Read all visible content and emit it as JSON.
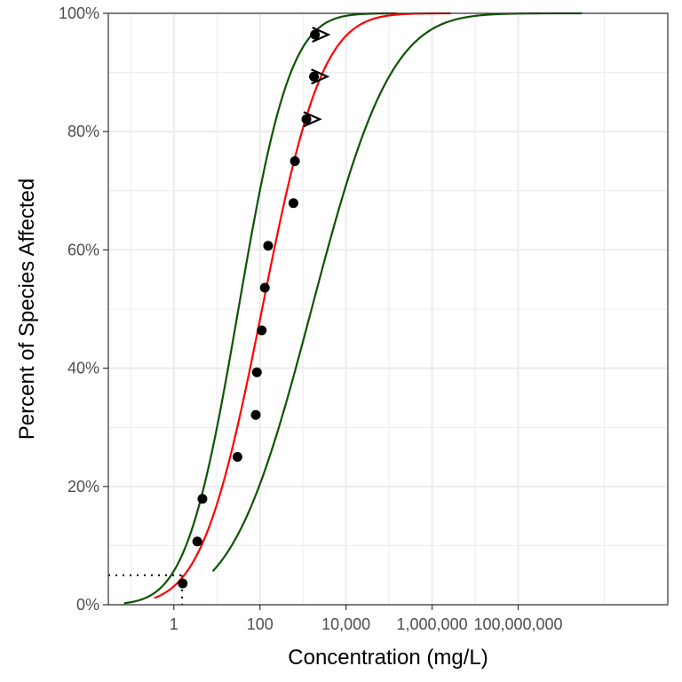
{
  "chart_data": {
    "type": "scatter",
    "title": "",
    "xlabel": "Concentration (mg/L)",
    "ylabel": "Percent of Species Affected",
    "x_scale": "log10",
    "xlim": [
      0.03,
      300000000000
    ],
    "ylim": [
      0,
      1
    ],
    "x_ticks": [
      {
        "value": 1,
        "label": "1"
      },
      {
        "value": 100,
        "label": "100"
      },
      {
        "value": 10000,
        "label": "10,000"
      },
      {
        "value": 1000000,
        "label": "1,000,000"
      },
      {
        "value": 100000000,
        "label": "100,000,000"
      }
    ],
    "y_ticks": [
      {
        "value": 0,
        "label": "0%"
      },
      {
        "value": 0.2,
        "label": "20%"
      },
      {
        "value": 0.4,
        "label": "40%"
      },
      {
        "value": 0.6,
        "label": "60%"
      },
      {
        "value": 0.8,
        "label": "80%"
      },
      {
        "value": 1,
        "label": "100%"
      }
    ],
    "grid": true,
    "legend": "none",
    "colors": {
      "fit": "#ff0000",
      "confidence_band": "#0d5302",
      "points": "#000000",
      "reference": "#000000"
    },
    "points": [
      {
        "x": 1.6,
        "y": 0.036
      },
      {
        "x": 3.5,
        "y": 0.107
      },
      {
        "x": 4.6,
        "y": 0.179
      },
      {
        "x": 30,
        "y": 0.25
      },
      {
        "x": 80,
        "y": 0.321
      },
      {
        "x": 85,
        "y": 0.393
      },
      {
        "x": 110,
        "y": 0.464
      },
      {
        "x": 130,
        "y": 0.536
      },
      {
        "x": 155,
        "y": 0.607
      },
      {
        "x": 600,
        "y": 0.679
      },
      {
        "x": 650,
        "y": 0.75
      },
      {
        "x": 1200,
        "y": 0.821,
        "censored": true
      },
      {
        "x": 1800,
        "y": 0.893,
        "censored": true
      },
      {
        "x": 1900,
        "y": 0.964,
        "censored": true
      }
    ],
    "fit_curve": {
      "name": "",
      "log10_median": 2.05,
      "log10_sd": 1.1,
      "x_range": [
        0.35,
        2700000
      ]
    },
    "lower_bound_curve": {
      "name": "",
      "log10_median": 1.5,
      "log10_sd": 0.95,
      "x_range": [
        0.07,
        150000
      ]
    },
    "upper_bound_curve": {
      "name": "",
      "log10_median": 3.2,
      "log10_sd": 1.45,
      "x_range": [
        8,
        3000000000
      ]
    },
    "reference_level": {
      "y": 0.05,
      "x": 1.55
    }
  }
}
